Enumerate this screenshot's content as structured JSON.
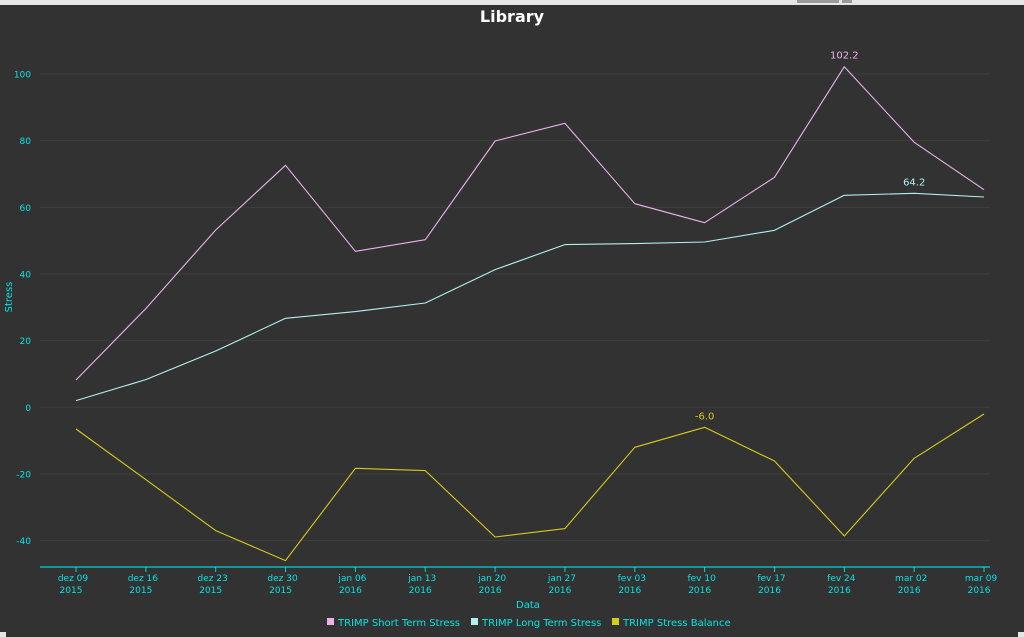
{
  "colors": {
    "background": "#323232",
    "grid": "#3e3e3e",
    "axis": "#00d6d6",
    "tick_text": "#00e5e5",
    "title": "#ffffff",
    "short_term": "#e8b4e8",
    "long_term": "#b2f0f0",
    "balance": "#d4cc1a"
  },
  "chart_data": {
    "type": "line",
    "title": "Library",
    "xlabel": "Data",
    "ylabel": "Stress",
    "ylim": [
      -48,
      110
    ],
    "yticks": [
      100,
      80,
      60,
      40,
      20,
      0,
      -20,
      -40
    ],
    "grid": true,
    "legend_position": "bottom-center",
    "categories": [
      {
        "line1": "dez 09",
        "line2": "2015"
      },
      {
        "line1": "dez 16",
        "line2": "2015"
      },
      {
        "line1": "dez 23",
        "line2": "2015"
      },
      {
        "line1": "dez 30",
        "line2": "2015"
      },
      {
        "line1": "jan 06",
        "line2": "2016"
      },
      {
        "line1": "jan 13",
        "line2": "2016"
      },
      {
        "line1": "jan 20",
        "line2": "2016"
      },
      {
        "line1": "jan 27",
        "line2": "2016"
      },
      {
        "line1": "fev 03",
        "line2": "2016"
      },
      {
        "line1": "fev 10",
        "line2": "2016"
      },
      {
        "line1": "fev 17",
        "line2": "2016"
      },
      {
        "line1": "fev 24",
        "line2": "2016"
      },
      {
        "line1": "mar 02",
        "line2": "2016"
      },
      {
        "line1": "mar 09",
        "line2": "2016"
      }
    ],
    "series": [
      {
        "name": "TRIMP Short Term Stress",
        "color": "#e8b4e8",
        "values": [
          8.2,
          29.6,
          53.2,
          72.6,
          46.8,
          50.3,
          79.9,
          85.2,
          61.1,
          55.4,
          69.0,
          102.2,
          79.5,
          65.3
        ],
        "annotations": [
          {
            "index": 11,
            "text": "102.2"
          }
        ]
      },
      {
        "name": "TRIMP Long Term Stress",
        "color": "#b2f0f0",
        "values": [
          2.0,
          8.3,
          16.9,
          26.7,
          28.7,
          31.3,
          41.3,
          48.8,
          49.1,
          49.6,
          53.1,
          63.6,
          64.2,
          63.1
        ],
        "annotations": [
          {
            "index": 12,
            "text": "64.2"
          }
        ]
      },
      {
        "name": "TRIMP Stress Balance",
        "color": "#d4cc1a",
        "values": [
          -6.5,
          -21.7,
          -37.0,
          -46.0,
          -18.3,
          -19.0,
          -38.9,
          -36.4,
          -12.0,
          -6.0,
          -16.1,
          -38.6,
          -15.3,
          -2.0
        ],
        "annotations": [
          {
            "index": 9,
            "text": "-6.0"
          }
        ]
      }
    ]
  }
}
